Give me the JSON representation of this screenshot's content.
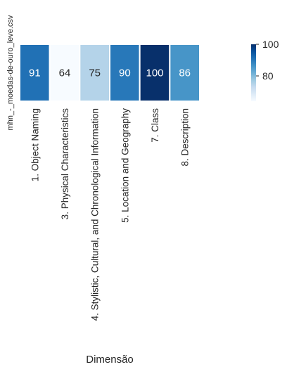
{
  "chart_data": {
    "type": "heatmap",
    "title": "",
    "xlabel": "Dimensão",
    "ylabel": "",
    "rows": [
      "mhn_-_moedas-de-ouro_leve.csv"
    ],
    "columns": [
      "1. Object Naming",
      "3. Physical Characteristics",
      "4. Stylistic, Cultural, and Chronological Information",
      "5. Location and Geography",
      "7. Class",
      "8. Description"
    ],
    "values": [
      [
        91,
        64,
        75,
        90,
        100,
        86
      ]
    ],
    "colormap": "Blues",
    "vmin": 64,
    "vmax": 100,
    "colorbar": {
      "ticks": [
        80,
        100
      ]
    },
    "grid": false,
    "legend": "colorbar-right"
  },
  "colors": {
    "cmap_stops": [
      "#f7fbff",
      "#deebf7",
      "#c6dbef",
      "#9ecae1",
      "#6baed6",
      "#4292c6",
      "#2171b5",
      "#08519c",
      "#08306b"
    ],
    "text_dark": "#262626",
    "text_light": "#ffffff",
    "cell_border": "#ffffff"
  }
}
